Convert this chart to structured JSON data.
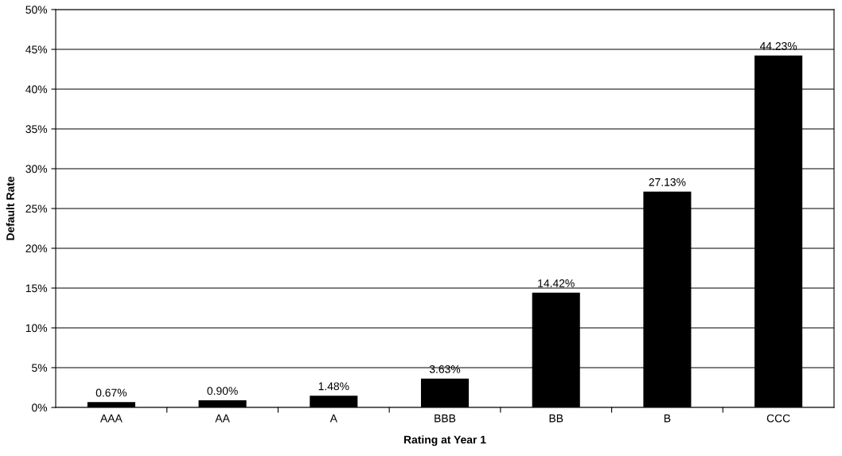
{
  "chart_data": {
    "type": "bar",
    "xlabel": "Rating at Year 1",
    "ylabel": "Default Rate",
    "categories": [
      "AAA",
      "AA",
      "A",
      "BBB",
      "BB",
      "B",
      "CCC"
    ],
    "values": [
      0.67,
      0.9,
      1.48,
      3.63,
      14.42,
      27.13,
      44.23
    ],
    "value_labels": [
      "0.67%",
      "0.90%",
      "1.48%",
      "3.63%",
      "14.42%",
      "27.13%",
      "44.23%"
    ],
    "color": "#000000",
    "ylim": [
      0,
      50
    ],
    "yticks": [
      {
        "value": 0,
        "label": "0%"
      },
      {
        "value": 5,
        "label": "5%"
      },
      {
        "value": 10,
        "label": "10%"
      },
      {
        "value": 15,
        "label": "15%"
      },
      {
        "value": 20,
        "label": "20%"
      },
      {
        "value": 25,
        "label": "25%"
      },
      {
        "value": 30,
        "label": "30%"
      },
      {
        "value": 35,
        "label": "35%"
      },
      {
        "value": 40,
        "label": "40%"
      },
      {
        "value": 45,
        "label": "45%"
      },
      {
        "value": 50,
        "label": "50%"
      }
    ],
    "grid": "y",
    "legend": false
  }
}
